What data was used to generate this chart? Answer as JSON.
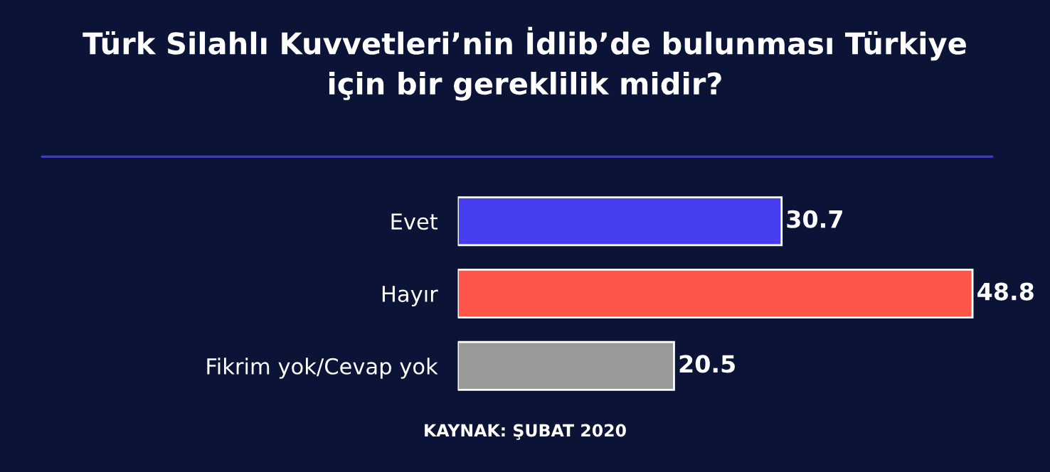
{
  "chart_data": {
    "type": "bar",
    "orientation": "horizontal",
    "title": "Türk Silahlı Kuvvetleri’nin İdlib’de bulunması Türkiye\niçin bir gereklilik midir?",
    "categories": [
      "Evet",
      "Hayır",
      "Fikrim yok/Cevap yok"
    ],
    "values": [
      30.7,
      48.8,
      20.5
    ],
    "colors": [
      "#473ef0",
      "#ff5549",
      "#9a9a9a"
    ],
    "data_labels": true,
    "annotations": [
      "KAYNAK: ŞUBAT 2020"
    ]
  }
}
